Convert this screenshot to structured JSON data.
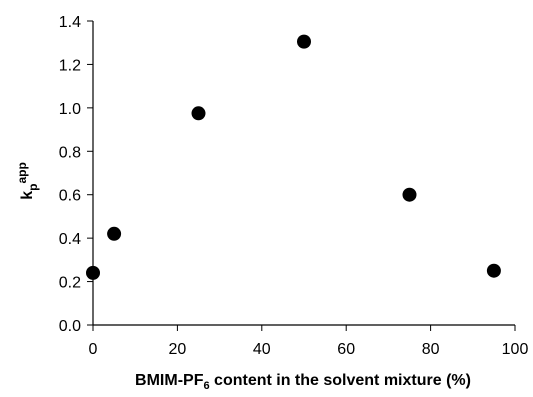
{
  "chart_data": {
    "type": "scatter",
    "title": "",
    "xlabel": {
      "main": "BMIM-PF",
      "subscript": "6",
      "rest": " content in the solvent mixture (%)"
    },
    "ylabel": {
      "main": "k",
      "subscript": "p",
      "superscript": "app"
    },
    "xlim": [
      0,
      100
    ],
    "ylim": [
      0.0,
      1.4
    ],
    "x_ticks": [
      0,
      20,
      40,
      60,
      80,
      100
    ],
    "x_tick_labels": [
      "0",
      "20",
      "40",
      "60",
      "80",
      "100"
    ],
    "y_ticks": [
      0.0,
      0.2,
      0.4,
      0.6,
      0.8,
      1.0,
      1.2,
      1.4
    ],
    "y_tick_labels": [
      "0.0",
      "0.2",
      "0.4",
      "0.6",
      "0.8",
      "1.0",
      "1.2",
      "1.4"
    ],
    "grid": false,
    "legend": "none",
    "marker_color": "#000000",
    "series": [
      {
        "x": [
          0,
          5,
          25,
          50,
          75,
          95
        ],
        "y": [
          0.24,
          0.42,
          0.975,
          1.305,
          0.6,
          0.25
        ]
      }
    ]
  }
}
